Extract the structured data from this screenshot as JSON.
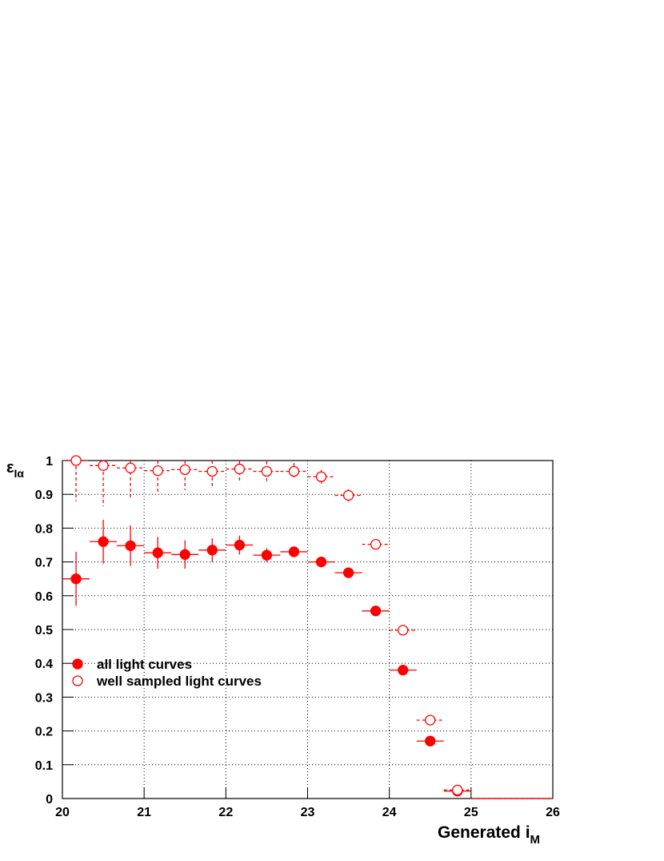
{
  "chart_data": {
    "type": "scatter",
    "ylabel": {
      "main": "ε",
      "sub": "Iα"
    },
    "xlabel": {
      "main": "Generated i",
      "sub": "M"
    },
    "xlim": [
      20,
      26
    ],
    "xticks": [
      20,
      21,
      22,
      23,
      24,
      25,
      26
    ],
    "ylim": [
      0,
      1
    ],
    "yticks": [
      0,
      0.1,
      0.2,
      0.3,
      0.4,
      0.5,
      0.6,
      0.7,
      0.8,
      0.9,
      1
    ],
    "grid": true,
    "legend": "lower-left",
    "xerr": 0.1667,
    "series": [
      {
        "name": "all light curves",
        "color": "#ff0000",
        "marker": "filled",
        "dashed": false,
        "x": [
          20.167,
          20.5,
          20.833,
          21.167,
          21.5,
          21.833,
          22.167,
          22.5,
          22.833,
          23.167,
          23.5,
          23.833,
          24.167,
          24.5,
          24.833,
          25.167,
          25.5,
          25.833
        ],
        "values": [
          0.65,
          0.76,
          0.748,
          0.727,
          0.722,
          0.735,
          0.75,
          0.72,
          0.73,
          0.7,
          0.668,
          0.555,
          0.38,
          0.17,
          0.022,
          0,
          0,
          0
        ],
        "errors": [
          0.08,
          0.065,
          0.06,
          0.047,
          0.042,
          0.035,
          0.028,
          0.02,
          0.015,
          0.01,
          0.007,
          0.005,
          0.005,
          0.005,
          0.005,
          0,
          0,
          0
        ]
      },
      {
        "name": "well sampled light curves",
        "color": "#ff0000",
        "marker": "open",
        "dashed": true,
        "x": [
          20.167,
          20.5,
          20.833,
          21.167,
          21.5,
          21.833,
          22.167,
          22.5,
          22.833,
          23.167,
          23.5,
          23.833,
          24.167,
          24.5,
          24.833,
          25.167,
          25.5,
          25.833
        ],
        "values": [
          1,
          0.985,
          0.978,
          0.97,
          0.973,
          0.968,
          0.975,
          0.968,
          0.968,
          0.952,
          0.897,
          0.752,
          0.498,
          0.232,
          0.025,
          0,
          0,
          0
        ],
        "errors": [
          0.12,
          0.12,
          0.09,
          0.07,
          0.06,
          0.05,
          0.035,
          0.03,
          0.025,
          0.02,
          0.018,
          0.015,
          0.008,
          0.005,
          0.005,
          0,
          0,
          0
        ]
      }
    ]
  }
}
